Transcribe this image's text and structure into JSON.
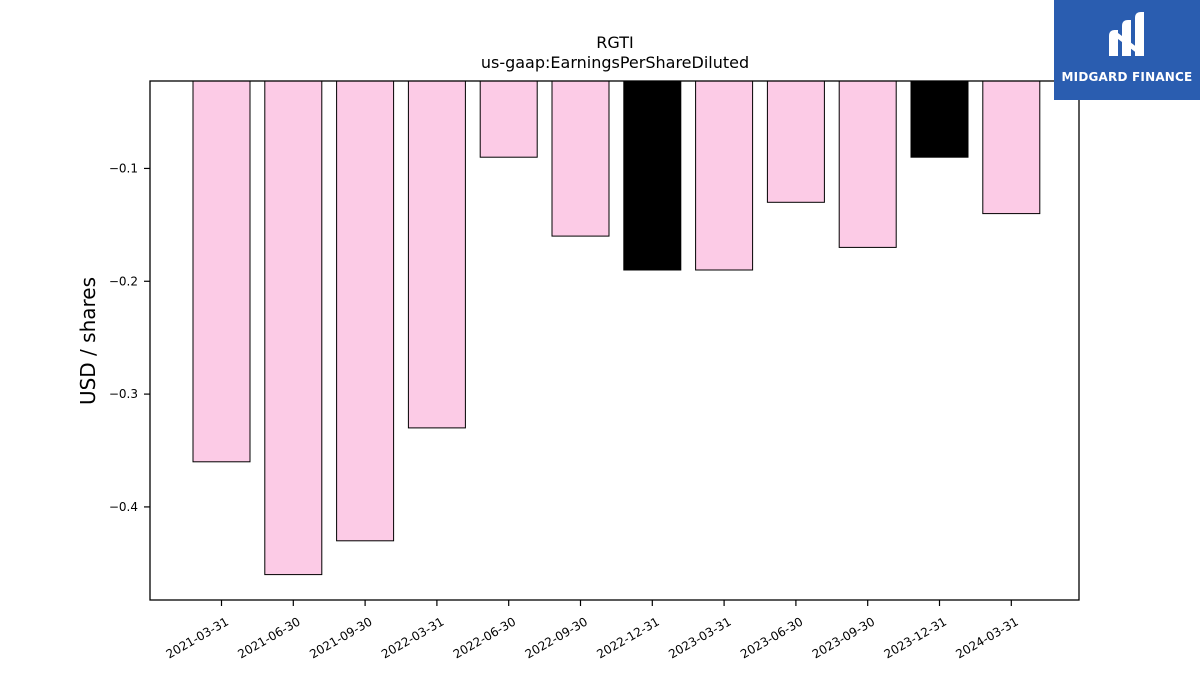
{
  "logo": {
    "name": "MIDGARD FINANCE",
    "color": "#2a5db0"
  },
  "chart_data": {
    "type": "bar",
    "title": "RGTI",
    "subtitle": "us-gaap:EarningsPerShareDiluted",
    "xlabel": "",
    "ylabel": "USD / shares",
    "categories": [
      "2021-03-31",
      "2021-06-30",
      "2021-09-30",
      "2022-03-31",
      "2022-06-30",
      "2022-09-30",
      "2022-12-31",
      "2023-03-31",
      "2023-06-30",
      "2023-09-30",
      "2023-12-31",
      "2024-03-31"
    ],
    "values": [
      -0.36,
      -0.46,
      -0.43,
      -0.33,
      -0.09,
      -0.16,
      -0.19,
      -0.19,
      -0.13,
      -0.17,
      -0.09,
      -0.14
    ],
    "highlight": [
      false,
      false,
      false,
      false,
      false,
      false,
      true,
      false,
      false,
      false,
      true,
      false
    ],
    "colors": {
      "default": "#fccbe6",
      "highlight": "#000000",
      "edge": "#000000"
    },
    "ylim": [
      -0.4825,
      -0.0225
    ],
    "yticks": [
      -0.1,
      -0.2,
      -0.3,
      -0.4
    ],
    "ytick_labels": [
      "−0.1",
      "−0.2",
      "−0.3",
      "−0.4"
    ],
    "grid": false,
    "legend": "none"
  }
}
